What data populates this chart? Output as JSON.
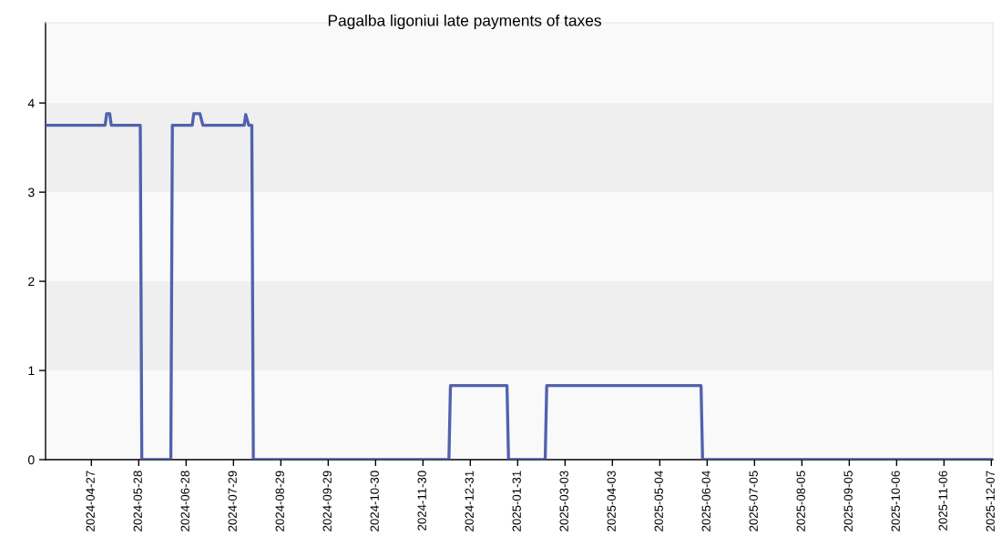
{
  "chart_data": {
    "type": "line",
    "title": "Pagalba ligoniui late payments of taxes",
    "x": [
      "2024-03-28",
      "2024-05-06",
      "2024-05-07",
      "2024-05-09",
      "2024-05-10",
      "2024-05-29",
      "2024-05-30",
      "2024-06-18",
      "2024-06-19",
      "2024-07-02",
      "2024-07-03",
      "2024-07-07",
      "2024-07-09",
      "2024-08-05",
      "2024-08-06",
      "2024-08-08",
      "2024-08-10",
      "2024-08-11",
      "2024-12-17",
      "2024-12-18",
      "2025-01-24",
      "2025-01-25",
      "2025-02-18",
      "2025-02-19",
      "2025-05-31",
      "2025-06-01",
      "2025-12-08"
    ],
    "series": [
      {
        "color": "#3f51a5",
        "values": [
          3.75,
          3.75,
          3.88,
          3.88,
          3.75,
          3.75,
          0,
          0,
          3.75,
          3.75,
          3.88,
          3.88,
          3.75,
          3.75,
          3.87,
          3.75,
          3.75,
          0,
          0,
          0.83,
          0.83,
          0,
          0,
          0.83,
          0.83,
          0,
          0
        ]
      }
    ],
    "xlim": [
      "2024-03-28",
      "2025-12-08"
    ],
    "xticks": [
      "2024-04-27",
      "2024-05-28",
      "2024-06-28",
      "2024-07-29",
      "2024-08-29",
      "2024-09-29",
      "2024-10-30",
      "2024-11-30",
      "2024-12-31",
      "2025-01-31",
      "2025-03-03",
      "2025-04-03",
      "2025-05-04",
      "2025-06-04",
      "2025-07-05",
      "2025-08-05",
      "2025-09-05",
      "2025-10-06",
      "2025-11-06",
      "2025-12-07"
    ],
    "ylim": [
      0,
      4.9
    ],
    "yticks": [
      0,
      1,
      2,
      3,
      4
    ],
    "bands": [
      {
        "axis": "y",
        "from": 1,
        "to": 2,
        "color": "#efefef"
      },
      {
        "axis": "y",
        "from": 3,
        "to": 4,
        "color": "#efefef"
      }
    ]
  }
}
